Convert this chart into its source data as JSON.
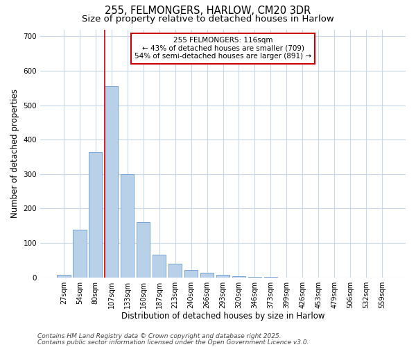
{
  "title1": "255, FELMONGERS, HARLOW, CM20 3DR",
  "title2": "Size of property relative to detached houses in Harlow",
  "xlabel": "Distribution of detached houses by size in Harlow",
  "ylabel": "Number of detached properties",
  "categories": [
    "27sqm",
    "54sqm",
    "80sqm",
    "107sqm",
    "133sqm",
    "160sqm",
    "187sqm",
    "213sqm",
    "240sqm",
    "266sqm",
    "293sqm",
    "320sqm",
    "346sqm",
    "373sqm",
    "399sqm",
    "426sqm",
    "453sqm",
    "479sqm",
    "506sqm",
    "532sqm",
    "559sqm"
  ],
  "values": [
    8,
    138,
    365,
    555,
    300,
    160,
    65,
    40,
    22,
    14,
    8,
    4,
    2,
    1,
    0,
    0,
    0,
    0,
    0,
    0,
    0
  ],
  "bar_color": "#b8d0e8",
  "bar_edge_color": "#6699cc",
  "annotation_line1": "255 FELMONGERS: 116sqm",
  "annotation_line2": "← 43% of detached houses are smaller (709)",
  "annotation_line3": "54% of semi-detached houses are larger (891) →",
  "vline_color": "#cc0000",
  "vline_index": 3,
  "annotation_box_color": "#ffffff",
  "annotation_box_edge": "#cc0000",
  "ylim": [
    0,
    720
  ],
  "yticks": [
    0,
    100,
    200,
    300,
    400,
    500,
    600,
    700
  ],
  "footer1": "Contains HM Land Registry data © Crown copyright and database right 2025.",
  "footer2": "Contains public sector information licensed under the Open Government Licence v3.0.",
  "bg_color": "#ffffff",
  "plot_bg_color": "#ffffff",
  "grid_color": "#c8d8ec",
  "title_fontsize": 10.5,
  "subtitle_fontsize": 9.5,
  "tick_fontsize": 7,
  "label_fontsize": 8.5,
  "annot_fontsize": 7.5,
  "footer_fontsize": 6.5
}
